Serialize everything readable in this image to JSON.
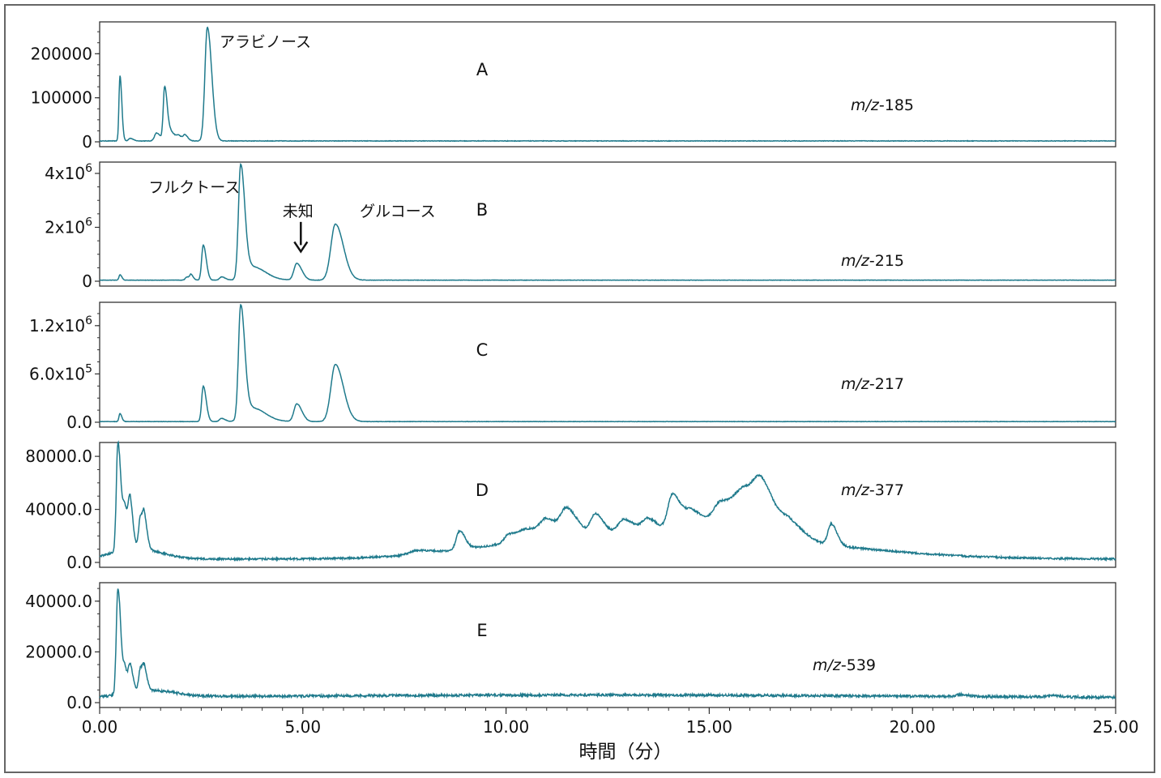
{
  "colors": {
    "trace": "#1f7a8c",
    "axis": "#333333",
    "frame": "#666666"
  },
  "chart_data": {
    "type": "line",
    "xlabel": "時間（分）",
    "xlim": [
      0,
      25
    ],
    "x_ticks": [
      0,
      5,
      10,
      15,
      20,
      25
    ],
    "x_tick_labels": [
      "0.00",
      "5.00",
      "10.00",
      "15.00",
      "20.00",
      "25.00"
    ],
    "panels": [
      {
        "letter": "A",
        "mz_prefix": "m/z",
        "mz_value": "-185",
        "ylim": [
          0,
          265000
        ],
        "y_ticks": [
          0,
          100000,
          200000
        ],
        "y_tick_labels": [
          {
            "base": "0",
            "exp": ""
          },
          {
            "base": "100000",
            "exp": ""
          },
          {
            "base": "200000",
            "exp": ""
          }
        ],
        "baseline": 2000,
        "peaks": [
          {
            "x": 0.5,
            "h": 148000,
            "w": 0.025
          },
          {
            "x": 0.75,
            "h": 6000,
            "w": 0.04
          },
          {
            "x": 1.4,
            "h": 18000,
            "w": 0.05
          },
          {
            "x": 1.6,
            "h": 122000,
            "w": 0.035
          },
          {
            "x": 1.75,
            "h": 20000,
            "w": 0.06
          },
          {
            "x": 1.95,
            "h": 10000,
            "w": 0.05
          },
          {
            "x": 2.1,
            "h": 12000,
            "w": 0.04
          },
          {
            "x": 2.65,
            "h": 258000,
            "w": 0.06
          }
        ],
        "noise": 0.004,
        "annotations": [
          {
            "text": "アラビノース",
            "x": 2.95,
            "y": 215000
          }
        ]
      },
      {
        "letter": "B",
        "mz_prefix": "m/z",
        "mz_value": "-215",
        "ylim": [
          0,
          4300000
        ],
        "y_ticks": [
          0,
          2000000,
          4000000
        ],
        "y_tick_labels": [
          {
            "base": "0",
            "exp": ""
          },
          {
            "base": "2x10",
            "exp": "6"
          },
          {
            "base": "4x10",
            "exp": "6"
          }
        ],
        "baseline": 40000,
        "peaks": [
          {
            "x": 0.5,
            "h": 200000,
            "w": 0.025
          },
          {
            "x": 2.15,
            "h": 120000,
            "w": 0.04
          },
          {
            "x": 2.25,
            "h": 180000,
            "w": 0.03
          },
          {
            "x": 2.55,
            "h": 1300000,
            "w": 0.04
          },
          {
            "x": 3.0,
            "h": 120000,
            "w": 0.05
          },
          {
            "x": 3.47,
            "h": 4150000,
            "w": 0.055
          },
          {
            "x": 3.75,
            "h": 500000,
            "w": 0.18
          },
          {
            "x": 4.85,
            "h": 620000,
            "w": 0.07
          },
          {
            "x": 5.8,
            "h": 2080000,
            "w": 0.11
          }
        ],
        "noise": 0.003,
        "annotations": [
          {
            "text": "フルクトース",
            "x": 1.2,
            "y": 3300000
          },
          {
            "text": "未知",
            "x": 4.5,
            "y": 2400000
          },
          {
            "text": "グルコース",
            "x": 6.4,
            "y": 2400000
          }
        ],
        "arrow": {
          "x": 4.95,
          "y_from": 2200000,
          "y_to": 1100000
        }
      },
      {
        "letter": "C",
        "mz_prefix": "m/z",
        "mz_value": "-217",
        "ylim": [
          0,
          1450000
        ],
        "y_ticks": [
          0,
          600000,
          1200000
        ],
        "y_tick_labels": [
          {
            "base": "0.0",
            "exp": ""
          },
          {
            "base": "6.0x10",
            "exp": "5"
          },
          {
            "base": "1.2x10",
            "exp": "6"
          }
        ],
        "baseline": 8000,
        "peaks": [
          {
            "x": 0.5,
            "h": 100000,
            "w": 0.025
          },
          {
            "x": 2.55,
            "h": 440000,
            "w": 0.04
          },
          {
            "x": 3.0,
            "h": 40000,
            "w": 0.05
          },
          {
            "x": 3.47,
            "h": 1400000,
            "w": 0.055
          },
          {
            "x": 3.75,
            "h": 170000,
            "w": 0.18
          },
          {
            "x": 4.85,
            "h": 220000,
            "w": 0.07
          },
          {
            "x": 5.8,
            "h": 710000,
            "w": 0.11
          }
        ],
        "noise": 0.003,
        "annotations": []
      },
      {
        "letter": "D",
        "mz_prefix": "m/z",
        "mz_value": "-377",
        "ylim": [
          0,
          88000
        ],
        "y_ticks": [
          0,
          40000,
          80000
        ],
        "y_tick_labels": [
          {
            "base": "0.0",
            "exp": ""
          },
          {
            "base": "40000.0",
            "exp": ""
          },
          {
            "base": "80000.0",
            "exp": ""
          }
        ],
        "baseline": 2500,
        "peaks": [
          {
            "x": 0.45,
            "h": 82000,
            "w": 0.04
          },
          {
            "x": 0.62,
            "h": 30000,
            "w": 0.05
          },
          {
            "x": 0.75,
            "h": 30000,
            "w": 0.04
          },
          {
            "x": 1.0,
            "h": 24000,
            "w": 0.04
          },
          {
            "x": 1.1,
            "h": 20000,
            "w": 0.04
          },
          {
            "x": 7.8,
            "h": 3000,
            "w": 0.2
          },
          {
            "x": 8.85,
            "h": 14000,
            "w": 0.08
          },
          {
            "x": 10.05,
            "h": 6000,
            "w": 0.1
          },
          {
            "x": 10.5,
            "h": 9000,
            "w": 0.2
          },
          {
            "x": 11.0,
            "h": 12000,
            "w": 0.15
          },
          {
            "x": 11.5,
            "h": 20000,
            "w": 0.15
          },
          {
            "x": 12.2,
            "h": 16000,
            "w": 0.12
          },
          {
            "x": 12.9,
            "h": 12000,
            "w": 0.15
          },
          {
            "x": 13.5,
            "h": 12000,
            "w": 0.15
          },
          {
            "x": 14.1,
            "h": 30000,
            "w": 0.12
          },
          {
            "x": 14.6,
            "h": 18000,
            "w": 0.18
          },
          {
            "x": 15.3,
            "h": 24000,
            "w": 0.2
          },
          {
            "x": 15.9,
            "h": 30000,
            "w": 0.25
          },
          {
            "x": 16.3,
            "h": 26000,
            "w": 0.2
          },
          {
            "x": 17.0,
            "h": 12000,
            "w": 0.2
          },
          {
            "x": 18.0,
            "h": 16000,
            "w": 0.08
          }
        ],
        "broad": [
          {
            "x": 0.9,
            "h": 8000,
            "w": 0.6
          },
          {
            "x": 15.0,
            "h": 16000,
            "w": 3.2
          },
          {
            "x": 11.0,
            "h": 8000,
            "w": 2.0
          }
        ],
        "noise": 0.015,
        "annotations": []
      },
      {
        "letter": "E",
        "mz_prefix": "m/z",
        "mz_value": "-539",
        "ylim": [
          0,
          46000
        ],
        "y_ticks": [
          0,
          20000,
          40000
        ],
        "y_tick_labels": [
          {
            "base": "0.0",
            "exp": ""
          },
          {
            "base": "20000.0",
            "exp": ""
          },
          {
            "base": "40000.0",
            "exp": ""
          }
        ],
        "baseline": 1800,
        "peaks": [
          {
            "x": 0.45,
            "h": 42000,
            "w": 0.04
          },
          {
            "x": 0.62,
            "h": 9000,
            "w": 0.04
          },
          {
            "x": 0.75,
            "h": 10000,
            "w": 0.04
          },
          {
            "x": 1.0,
            "h": 9000,
            "w": 0.04
          },
          {
            "x": 1.1,
            "h": 7000,
            "w": 0.04
          },
          {
            "x": 21.2,
            "h": 800,
            "w": 0.1
          },
          {
            "x": 23.4,
            "h": 700,
            "w": 0.1
          }
        ],
        "broad": [
          {
            "x": 1.3,
            "h": 2500,
            "w": 0.6
          },
          {
            "x": 12.0,
            "h": 1200,
            "w": 8.0
          }
        ],
        "noise": 0.02,
        "annotations": []
      }
    ]
  }
}
